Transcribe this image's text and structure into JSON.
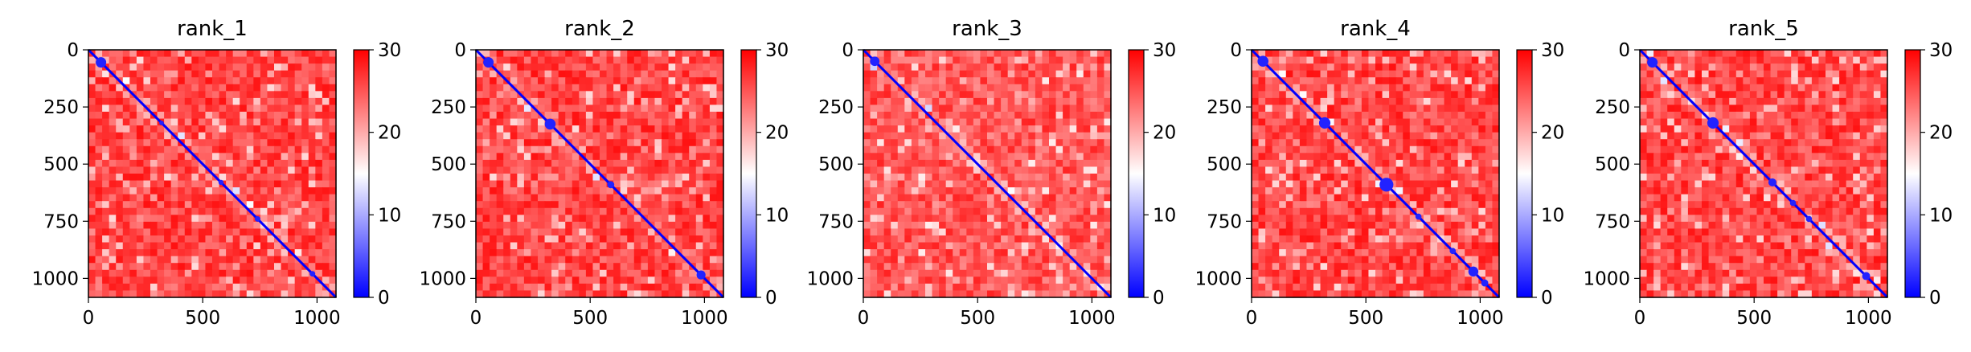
{
  "chart_data": [
    {
      "type": "heatmap",
      "title": "rank_1",
      "xlim": [
        0,
        1083
      ],
      "ylim": [
        1083,
        0
      ],
      "xticks": [
        0,
        500,
        1000
      ],
      "yticks": [
        0,
        250,
        500,
        750,
        1000
      ],
      "colorbar": {
        "min": 0,
        "max": 30,
        "ticks": [
          0,
          10,
          20,
          30
        ],
        "colormap": "bwr"
      },
      "diagonal_value": 0,
      "background_value": 29,
      "low_blobs": [
        [
          55,
          1.5
        ],
        [
          320,
          0.3
        ],
        [
          580,
          0.4
        ],
        [
          740,
          0.5
        ],
        [
          980,
          0.5
        ]
      ]
    },
    {
      "type": "heatmap",
      "title": "rank_2",
      "xlim": [
        0,
        1083
      ],
      "ylim": [
        1083,
        0
      ],
      "xticks": [
        0,
        500,
        1000
      ],
      "yticks": [
        0,
        250,
        500,
        750,
        1000
      ],
      "colorbar": {
        "min": 0,
        "max": 30,
        "ticks": [
          0,
          10,
          20,
          30
        ],
        "colormap": "bwr"
      },
      "diagonal_value": 0,
      "background_value": 29,
      "low_blobs": [
        [
          55,
          1.5
        ],
        [
          325,
          1.6
        ],
        [
          590,
          0.8
        ],
        [
          985,
          1.2
        ]
      ]
    },
    {
      "type": "heatmap",
      "title": "rank_3",
      "xlim": [
        0,
        1083
      ],
      "ylim": [
        1083,
        0
      ],
      "xticks": [
        0,
        500,
        1000
      ],
      "yticks": [
        0,
        250,
        500,
        750,
        1000
      ],
      "colorbar": {
        "min": 0,
        "max": 30,
        "ticks": [
          0,
          10,
          20,
          30
        ],
        "colormap": "bwr"
      },
      "diagonal_value": 0,
      "background_value": 28,
      "low_blobs": [
        [
          50,
          1.3
        ]
      ]
    },
    {
      "type": "heatmap",
      "title": "rank_4",
      "xlim": [
        0,
        1083
      ],
      "ylim": [
        1083,
        0
      ],
      "xticks": [
        0,
        500,
        1000
      ],
      "yticks": [
        0,
        250,
        500,
        750,
        1000
      ],
      "colorbar": {
        "min": 0,
        "max": 30,
        "ticks": [
          0,
          10,
          20,
          30
        ],
        "colormap": "bwr"
      },
      "diagonal_value": 0,
      "background_value": 29,
      "low_blobs": [
        [
          50,
          1.6
        ],
        [
          320,
          1.7
        ],
        [
          590,
          2.2
        ],
        [
          730,
          0.6
        ],
        [
          880,
          0.6
        ],
        [
          970,
          1.4
        ],
        [
          1020,
          0.8
        ]
      ]
    },
    {
      "type": "heatmap",
      "title": "rank_5",
      "xlim": [
        0,
        1083
      ],
      "ylim": [
        1083,
        0
      ],
      "xticks": [
        0,
        500,
        1000
      ],
      "yticks": [
        0,
        250,
        500,
        750,
        1000
      ],
      "colorbar": {
        "min": 0,
        "max": 30,
        "ticks": [
          0,
          10,
          20,
          30
        ],
        "colormap": "bwr"
      },
      "diagonal_value": 0,
      "background_value": 29,
      "low_blobs": [
        [
          55,
          1.5
        ],
        [
          320,
          1.7
        ],
        [
          580,
          1.0
        ],
        [
          670,
          0.6
        ],
        [
          740,
          0.6
        ],
        [
          990,
          1.0
        ]
      ]
    }
  ]
}
